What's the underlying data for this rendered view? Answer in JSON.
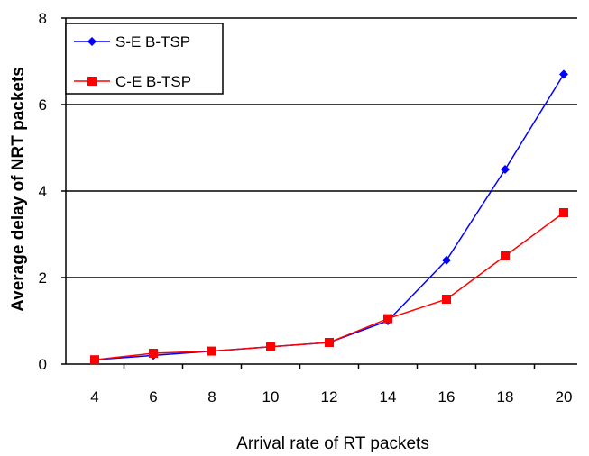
{
  "chart_data": {
    "type": "line",
    "title": "",
    "xlabel": "Arrival rate of RT packets",
    "ylabel": "Average delay of NRT packets",
    "categories": [
      "4",
      "6",
      "8",
      "10",
      "12",
      "14",
      "16",
      "18",
      "20"
    ],
    "x": [
      4,
      6,
      8,
      10,
      12,
      14,
      16,
      18,
      20
    ],
    "ylim": [
      0,
      8
    ],
    "yticks": [
      "0",
      "2",
      "4",
      "6",
      "8"
    ],
    "grid": "horizontal",
    "legend_position": "top-left",
    "series": [
      {
        "name": "S-E B-TSP",
        "color": "#0000ff",
        "marker": "diamond",
        "values": [
          0.1,
          0.2,
          0.3,
          0.4,
          0.5,
          1.0,
          2.4,
          4.5,
          6.7
        ]
      },
      {
        "name": "C-E B-TSP",
        "color": "#ff0000",
        "marker": "square",
        "values": [
          0.1,
          0.25,
          0.3,
          0.4,
          0.5,
          1.05,
          1.5,
          2.5,
          3.5
        ]
      }
    ]
  }
}
